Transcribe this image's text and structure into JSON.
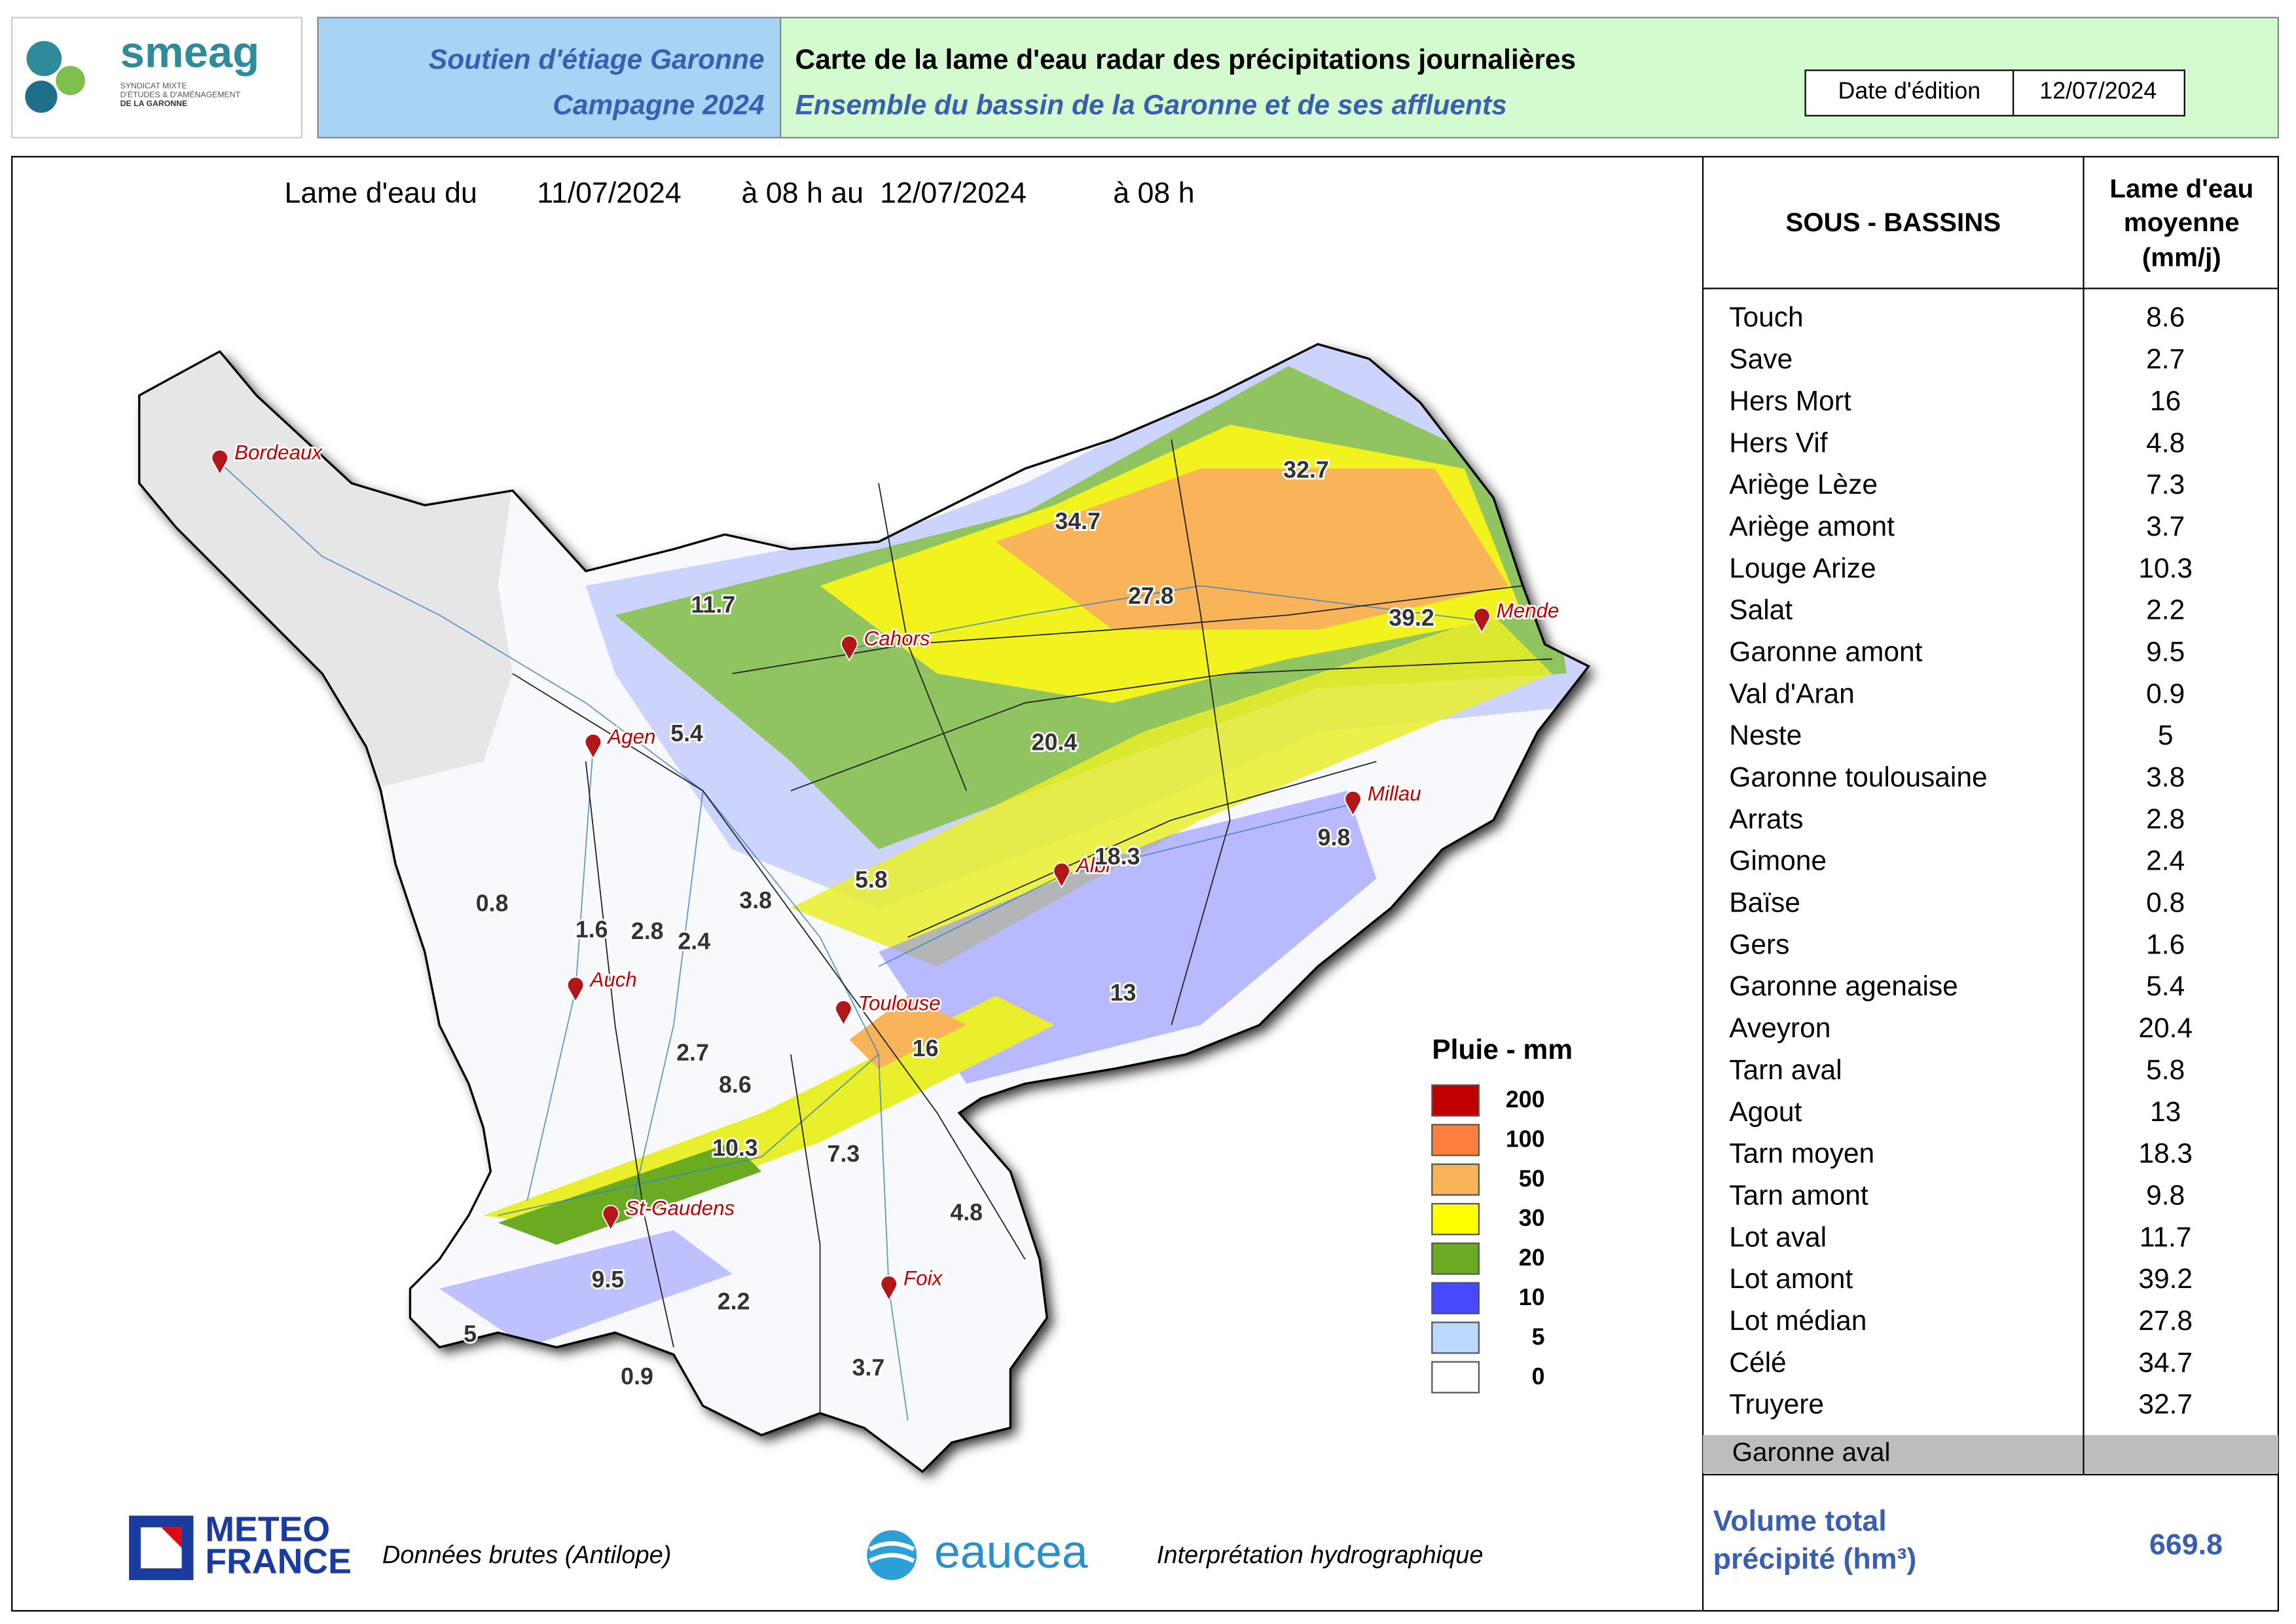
{
  "header": {
    "logo": {
      "name": "smeag",
      "tagline": [
        "SYNDICAT MIXTE",
        "D'ÉTUDES & D'AMÉNAGEMENT",
        "DE LA GARONNE"
      ]
    },
    "left_title": [
      "Soutien d'étiage Garonne",
      "Campagne 2024"
    ],
    "title": "Carte de la lame d'eau radar des précipitations journalières",
    "subtitle": "Ensemble du bassin de la Garonne et de ses affluents",
    "date_label": "Date d'édition",
    "date_value": "12/07/2024"
  },
  "map": {
    "period": [
      "Lame d'eau du",
      "11/07/2024",
      "à 08 h au",
      "12/07/2024",
      "à 08 h"
    ],
    "cities": [
      "Bordeaux",
      "Cahors",
      "Agen",
      "Mende",
      "Millau",
      "Albi",
      "Auch",
      "Toulouse",
      "St-Gaudens",
      "Foix"
    ],
    "basin_labels": [
      32.7,
      34.7,
      27.8,
      39.2,
      11.7,
      5.4,
      20.4,
      18.3,
      9.8,
      5.8,
      3.8,
      0.8,
      1.6,
      2.8,
      2.4,
      13,
      16,
      2.7,
      8.6,
      10.3,
      7.3,
      4.8,
      9.5,
      2.2,
      5,
      0.9,
      3.7
    ],
    "legend": {
      "title": "Pluie - mm",
      "values": [
        200,
        100,
        50,
        30,
        20,
        10,
        5,
        0
      ],
      "colors": [
        "#c00000",
        "#ff7f3f",
        "#f9b45a",
        "#ffff00",
        "#6aab22",
        "#4848ff",
        "#bcd8ff",
        "#ffffff"
      ]
    }
  },
  "table": {
    "headers": [
      "SOUS - BASSINS",
      [
        "Lame d'eau",
        "moyenne",
        "(mm/j)"
      ]
    ],
    "rows": [
      [
        "Touch",
        8.6
      ],
      [
        "Save",
        2.7
      ],
      [
        "Hers Mort",
        16
      ],
      [
        "Hers Vif",
        4.8
      ],
      [
        "Ariège Lèze",
        7.3
      ],
      [
        "Ariège amont",
        3.7
      ],
      [
        "Louge Arize",
        10.3
      ],
      [
        "Salat",
        2.2
      ],
      [
        "Garonne amont",
        9.5
      ],
      [
        "Val d'Aran",
        0.9
      ],
      [
        "Neste",
        5
      ],
      [
        "Garonne toulousaine",
        3.8
      ],
      [
        "Arrats",
        2.8
      ],
      [
        "Gimone",
        2.4
      ],
      [
        "Baïse",
        0.8
      ],
      [
        "Gers",
        1.6
      ],
      [
        "Garonne agenaise",
        5.4
      ],
      [
        "Aveyron",
        20.4
      ],
      [
        "Tarn aval",
        5.8
      ],
      [
        "Agout",
        13
      ],
      [
        "Tarn moyen",
        18.3
      ],
      [
        "Tarn amont",
        9.8
      ],
      [
        "Lot aval",
        11.7
      ],
      [
        "Lot amont",
        39.2
      ],
      [
        "Lot médian",
        27.8
      ],
      [
        "Célé",
        34.7
      ],
      [
        "Truyere",
        32.7
      ]
    ],
    "extra_row": "Garonne aval",
    "total_label": [
      "Volume total",
      "précipité (hm³)"
    ],
    "total_value": 669.8
  },
  "footer": {
    "meteo": [
      "METEO",
      "FRANCE"
    ],
    "meteo_note": "Données brutes (Antilope)",
    "eaucea": "eaucea",
    "eaucea_note": "Interprétation hydrographique"
  }
}
